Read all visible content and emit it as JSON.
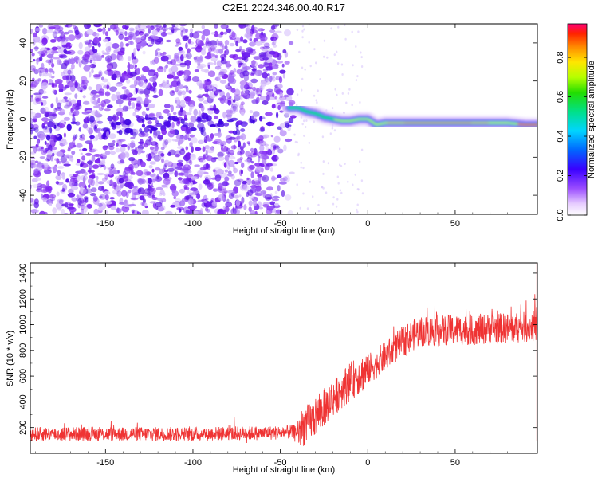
{
  "title": "C2E1.2024.346.00.40.R17",
  "chart_data": [
    {
      "type": "heatmap",
      "xlabel": "Height of straight line (km)",
      "ylabel": "Frequency (Hz)",
      "xlim": [
        -193,
        97
      ],
      "ylim": [
        -50,
        50
      ],
      "x_ticks": [
        -150,
        -100,
        -50,
        0,
        50
      ],
      "y_ticks": [
        -40,
        -20,
        0,
        20,
        40
      ],
      "colorbar": {
        "label": "Normalized spectral amplitude",
        "range": [
          0,
          0.97
        ],
        "ticks": [
          0.0,
          0.2,
          0.4,
          0.6,
          0.8
        ]
      },
      "ridge": {
        "x": [
          -45,
          -40,
          -35,
          -30,
          -25,
          -20,
          -15,
          -10,
          -5,
          0,
          5,
          10,
          20,
          30,
          40,
          50,
          60,
          70,
          80,
          90,
          97
        ],
        "y": [
          6,
          6,
          4,
          3,
          1,
          0,
          -1,
          -1,
          0,
          0,
          -3,
          -2,
          -2,
          -2,
          -2,
          -2,
          -2,
          -2,
          -2,
          -3,
          -3
        ]
      },
      "noise_region_x": [
        -193,
        -40
      ]
    },
    {
      "type": "line",
      "xlabel": "Height of straight line (km)",
      "ylabel": "SNR (10 * v/v)",
      "xlim": [
        -193,
        97
      ],
      "ylim": [
        0,
        1480
      ],
      "x_ticks": [
        -150,
        -100,
        -50,
        0,
        50
      ],
      "y_ticks": [
        200,
        400,
        600,
        800,
        1000,
        1200,
        1400
      ],
      "color": "#ef3333",
      "trend": {
        "x": [
          -193,
          -150,
          -100,
          -50,
          -40,
          -30,
          -20,
          -10,
          0,
          10,
          20,
          30,
          40,
          50,
          60,
          70,
          80,
          90,
          97
        ],
        "y": [
          150,
          150,
          150,
          160,
          170,
          280,
          430,
          560,
          650,
          750,
          870,
          950,
          950,
          960,
          960,
          970,
          970,
          980,
          990
        ]
      }
    }
  ]
}
